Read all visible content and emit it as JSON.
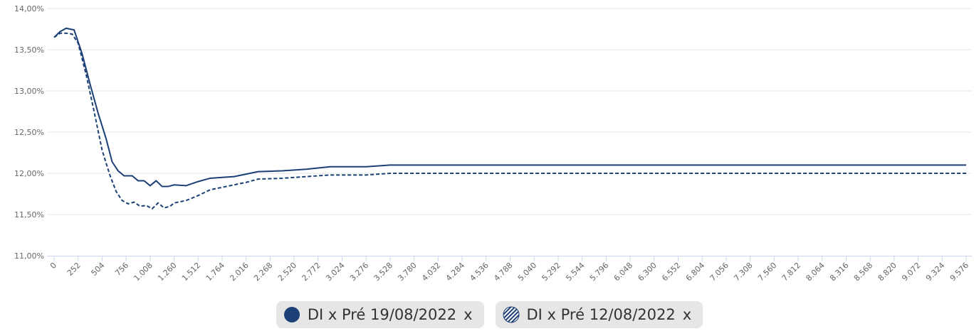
{
  "chart_data": {
    "type": "line",
    "xlim": [
      0,
      9576
    ],
    "ylim": [
      11,
      14
    ],
    "grid": true,
    "yticks": [
      {
        "value": 11,
        "label": "11,00%"
      },
      {
        "value": 11.5,
        "label": "11,50%"
      },
      {
        "value": 12,
        "label": "12,00%"
      },
      {
        "value": 12.5,
        "label": "12,50%"
      },
      {
        "value": 13,
        "label": "13,00%"
      },
      {
        "value": 13.5,
        "label": "13,50%"
      },
      {
        "value": 14,
        "label": "14,00%"
      }
    ],
    "xticks": [
      0,
      252,
      504,
      756,
      {
        "value": 1008,
        "label": "1.008"
      },
      {
        "value": 1260,
        "label": "1.260"
      },
      {
        "value": 1512,
        "label": "1.512"
      },
      {
        "value": 1764,
        "label": "1.764"
      },
      {
        "value": 2016,
        "label": "2.016"
      },
      {
        "value": 2268,
        "label": "2.268"
      },
      {
        "value": 2520,
        "label": "2.520"
      },
      {
        "value": 2772,
        "label": "2.772"
      },
      {
        "value": 3024,
        "label": "3.024"
      },
      {
        "value": 3276,
        "label": "3.276"
      },
      {
        "value": 3528,
        "label": "3.528"
      },
      {
        "value": 3780,
        "label": "3.780"
      },
      {
        "value": 4032,
        "label": "4.032"
      },
      {
        "value": 4284,
        "label": "4.284"
      },
      {
        "value": 4536,
        "label": "4.536"
      },
      {
        "value": 4788,
        "label": "4.788"
      },
      {
        "value": 5040,
        "label": "5.040"
      },
      {
        "value": 5292,
        "label": "5.292"
      },
      {
        "value": 5544,
        "label": "5.544"
      },
      {
        "value": 5796,
        "label": "5.796"
      },
      {
        "value": 6048,
        "label": "6.048"
      },
      {
        "value": 6300,
        "label": "6.300"
      },
      {
        "value": 6552,
        "label": "6.552"
      },
      {
        "value": 6804,
        "label": "6.804"
      },
      {
        "value": 7056,
        "label": "7.056"
      },
      {
        "value": 7308,
        "label": "7.308"
      },
      {
        "value": 7560,
        "label": "7.560"
      },
      {
        "value": 7812,
        "label": "7.812"
      },
      {
        "value": 8064,
        "label": "8.064"
      },
      {
        "value": 8316,
        "label": "8.316"
      },
      {
        "value": 8568,
        "label": "8.568"
      },
      {
        "value": 8820,
        "label": "8.820"
      },
      {
        "value": 9072,
        "label": "9.072"
      },
      {
        "value": 9324,
        "label": "9.324"
      },
      {
        "value": 9576,
        "label": "9.576"
      }
    ],
    "legend_close": "x",
    "series": [
      {
        "name": "DI x Pré 19/08/2022",
        "color": "#1c3f75",
        "dash": "solid",
        "marker": "filled",
        "x": [
          0,
          63,
          126,
          210,
          294,
          378,
          462,
          546,
          609,
          672,
          735,
          819,
          882,
          945,
          1008,
          1071,
          1134,
          1197,
          1260,
          1386,
          1512,
          1638,
          1764,
          1890,
          2016,
          2142,
          2394,
          2646,
          2898,
          3276,
          3528,
          9576
        ],
        "values": [
          13.65,
          13.72,
          13.76,
          13.74,
          13.45,
          13.08,
          12.73,
          12.42,
          12.14,
          12.03,
          11.97,
          11.97,
          11.91,
          11.91,
          11.85,
          11.91,
          11.84,
          11.84,
          11.86,
          11.85,
          11.9,
          11.94,
          11.95,
          11.96,
          11.99,
          12.02,
          12.03,
          12.05,
          12.08,
          12.08,
          12.1,
          12.1
        ]
      },
      {
        "name": "DI x Pré 12/08/2022",
        "color": "#1c3f75",
        "dash": "dashed",
        "marker": "hatched",
        "x": [
          0,
          63,
          126,
          189,
          252,
          336,
          420,
          504,
          588,
          651,
          714,
          777,
          840,
          903,
          966,
          1029,
          1092,
          1155,
          1218,
          1260,
          1386,
          1512,
          1638,
          1764,
          1890,
          2016,
          2142,
          2394,
          2646,
          2898,
          3276,
          3528,
          9576
        ],
        "values": [
          13.65,
          13.7,
          13.7,
          13.69,
          13.58,
          13.2,
          12.75,
          12.28,
          11.97,
          11.78,
          11.67,
          11.63,
          11.65,
          11.6,
          11.61,
          11.57,
          11.64,
          11.58,
          11.6,
          11.64,
          11.67,
          11.73,
          11.8,
          11.83,
          11.86,
          11.89,
          11.93,
          11.94,
          11.96,
          11.98,
          11.98,
          12.0,
          12.0
        ]
      }
    ]
  }
}
